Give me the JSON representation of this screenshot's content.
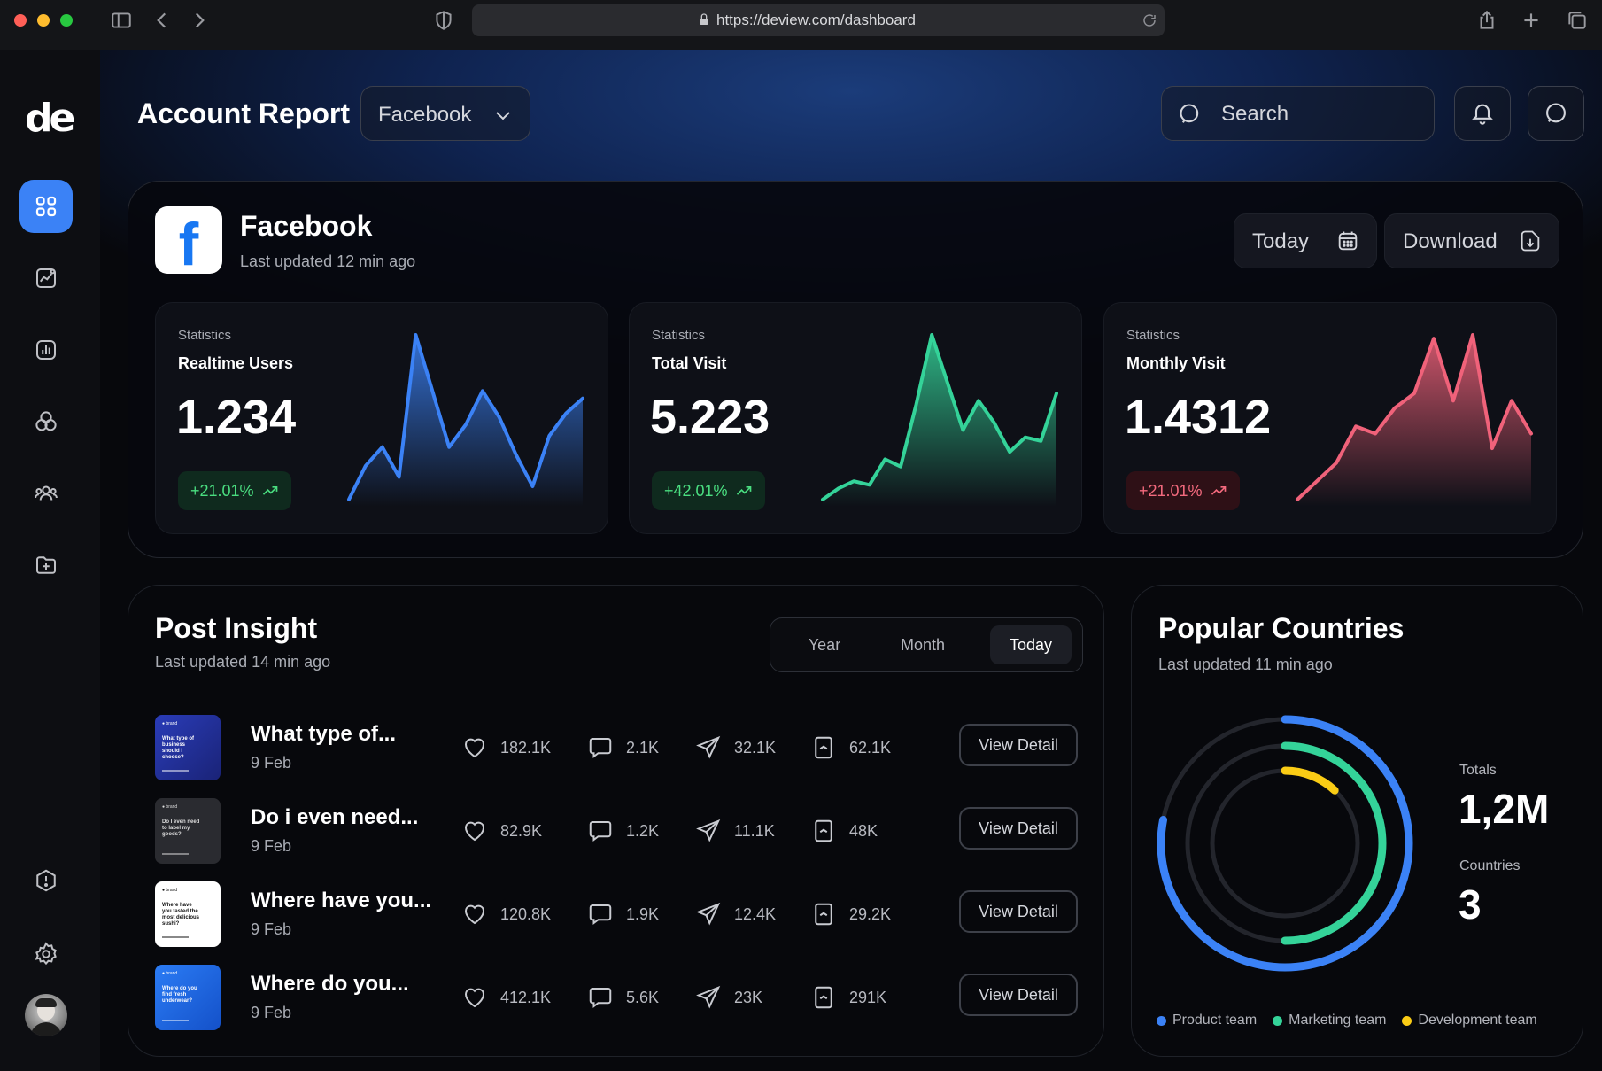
{
  "browser": {
    "url": "https://deview.com/dashboard"
  },
  "sidebar": {
    "logo": "de",
    "items": [
      {
        "name": "dashboard",
        "icon": "grid-icon",
        "active": true
      },
      {
        "name": "analytics",
        "icon": "chart-line-icon",
        "active": false
      },
      {
        "name": "reports",
        "icon": "bar-chart-icon",
        "active": false
      },
      {
        "name": "segments",
        "icon": "circles-icon",
        "active": false
      },
      {
        "name": "teams",
        "icon": "users-icon",
        "active": false
      },
      {
        "name": "add-folder",
        "icon": "folder-plus-icon",
        "active": false
      },
      {
        "name": "alerts",
        "icon": "alert-icon",
        "active": false
      },
      {
        "name": "settings",
        "icon": "gear-icon",
        "active": false
      }
    ]
  },
  "header": {
    "title": "Account Report",
    "platform": "Facebook",
    "search_placeholder": "Search"
  },
  "account": {
    "name": "Facebook",
    "updated": "Last updated 12 min ago",
    "today_label": "Today",
    "download_label": "Download"
  },
  "stats": [
    {
      "caption": "Statistics",
      "title": "Realtime Users",
      "value": "1.234",
      "change": "+21.01%",
      "color": "#3b82f6",
      "tone": "green",
      "series": [
        2,
        20,
        30,
        14,
        90,
        60,
        30,
        42,
        60,
        46,
        26,
        9,
        36,
        48,
        56
      ]
    },
    {
      "caption": "Statistics",
      "title": "Total Visit",
      "value": "5.223",
      "change": "+42.01%",
      "color": "#34d399",
      "tone": "green",
      "series": [
        2,
        8,
        12,
        10,
        24,
        20,
        54,
        92,
        66,
        40,
        56,
        44,
        28,
        36,
        34,
        60
      ]
    },
    {
      "caption": "Statistics",
      "title": "Monthly Visit",
      "value": "1.4312",
      "change": "+21.01%",
      "color": "#f0627a",
      "tone": "red",
      "series": [
        2,
        12,
        22,
        42,
        38,
        52,
        60,
        90,
        56,
        92,
        30,
        56,
        38
      ]
    }
  ],
  "post_insight": {
    "title": "Post Insight",
    "updated": "Last updated 14 min ago",
    "periods": [
      "Year",
      "Month",
      "Today"
    ],
    "active_period": "Today",
    "view_label": "View Detail",
    "posts": [
      {
        "title": "What type of...",
        "date": "9 Feb",
        "likes": "182.1K",
        "comments": "2.1K",
        "shares": "32.1K",
        "saves": "62.1K",
        "thumb_text": "What type of business should I choose?"
      },
      {
        "title": "Do i even need...",
        "date": "9 Feb",
        "likes": "82.9K",
        "comments": "1.2K",
        "shares": "11.1K",
        "saves": "48K",
        "thumb_text": "Do I even need to label my goods?"
      },
      {
        "title": "Where have you...",
        "date": "9 Feb",
        "likes": "120.8K",
        "comments": "1.9K",
        "shares": "12.4K",
        "saves": "29.2K",
        "thumb_text": "Where have you tasted the most delicious sushi?"
      },
      {
        "title": "Where do you...",
        "date": "9 Feb",
        "likes": "412.1K",
        "comments": "5.6K",
        "shares": "23K",
        "saves": "291K",
        "thumb_text": "Where do you find fresh underwear?"
      }
    ]
  },
  "countries": {
    "title": "Popular Countries",
    "updated": "Last updated 11 min ago",
    "totals_label": "Totals",
    "totals_value": "1,2M",
    "countries_label": "Countries",
    "countries_value": "3",
    "legend": [
      {
        "name": "Product team",
        "color": "#3b82f6",
        "fraction": 0.78
      },
      {
        "name": "Marketing team",
        "color": "#34d399",
        "fraction": 0.5
      },
      {
        "name": "Development team",
        "color": "#facc15",
        "fraction": 0.12
      }
    ]
  }
}
